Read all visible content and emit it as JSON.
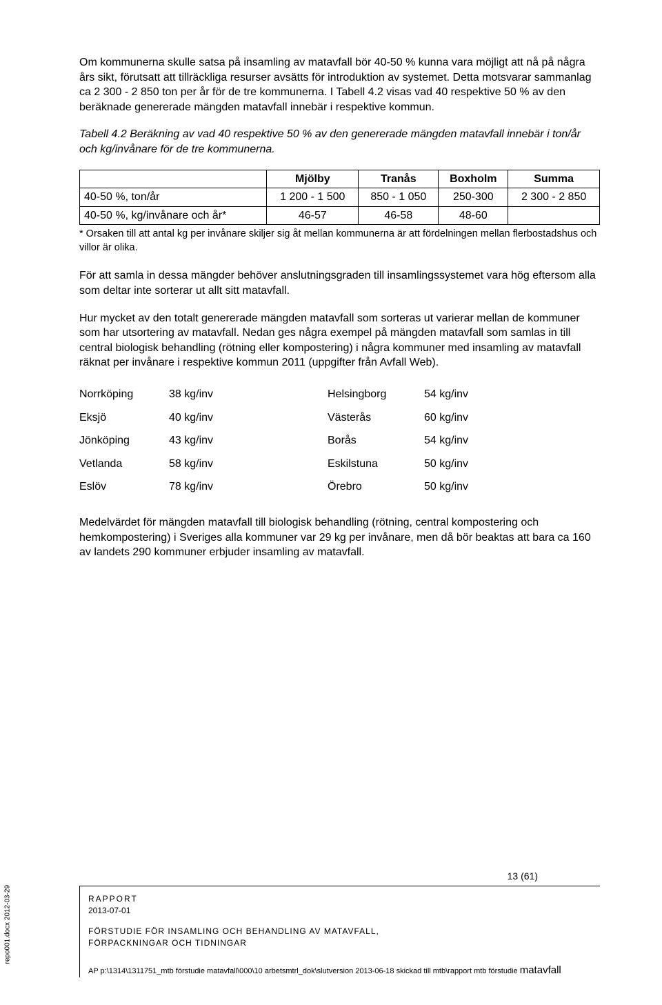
{
  "para1": "Om kommunerna skulle satsa på insamling av matavfall bör 40-50 % kunna vara möjligt att nå på några års sikt, förutsatt att tillräckliga resurser avsätts för introduktion av systemet. Detta motsvarar sammanlag ca 2 300 - 2 850 ton per år för de tre kommunerna. I Tabell 4.2 visas vad 40 respektive 50 % av den beräknade genererade mängden matavfall innebär i respektive kommun.",
  "tableCaption": "Tabell 4.2 Beräkning av vad 40 respektive 50 % av den genererade mängden matavfall innebär i ton/år och kg/invånare för de tre kommunerna.",
  "table": {
    "headers": [
      "",
      "Mjölby",
      "Tranås",
      "Boxholm",
      "Summa"
    ],
    "rows": [
      [
        "40-50 %, ton/år",
        "1 200 - 1 500",
        "850 - 1 050",
        "250-300",
        "2 300 - 2 850"
      ],
      [
        "40-50 %, kg/invånare och år*",
        "46-57",
        "46-58",
        "48-60",
        ""
      ]
    ]
  },
  "tableNote": "* Orsaken till att antal kg per invånare skiljer sig åt mellan kommunerna är att fördelningen mellan flerbostadshus och villor är olika.",
  "para2": "För att samla in dessa mängder behöver anslutningsgraden till insamlingssystemet vara hög eftersom alla som deltar inte sorterar ut allt sitt matavfall.",
  "para3": "Hur mycket av den totalt genererade mängden matavfall som sorteras ut varierar mellan de kommuner som har utsortering av matavfall. Nedan ges några exempel på mängden matavfall som samlas in till central biologisk behandling (rötning eller kompostering) i några kommuner med insamling av matavfall räknat per invånare i respektive kommun 2011 (uppgifter från Avfall Web).",
  "cityList": [
    {
      "left": "Norrköping",
      "lval": "38 kg/inv",
      "right": "Helsingborg",
      "rval": "54 kg/inv"
    },
    {
      "left": "Eksjö",
      "lval": "40 kg/inv",
      "right": "Västerås",
      "rval": "60 kg/inv"
    },
    {
      "left": "Jönköping",
      "lval": "43 kg/inv",
      "right": "Borås",
      "rval": "54 kg/inv"
    },
    {
      "left": "Vetlanda",
      "lval": "58 kg/inv",
      "right": "Eskilstuna",
      "rval": "50 kg/inv"
    },
    {
      "left": "Eslöv",
      "lval": "78 kg/inv",
      "right": "Örebro",
      "rval": "50 kg/inv"
    }
  ],
  "para4": "Medelvärdet för mängden matavfall till biologisk behandling (rötning, central kompostering och hemkompostering) i Sveriges alla kommuner var 29 kg per invånare, men då bör beaktas att bara ca 160 av landets 290 kommuner erbjuder insamling av matavfall.",
  "pageNum": "13 (61)",
  "footer": {
    "rapport": "RAPPORT",
    "date": "2013-07-01",
    "title1": "FÖRSTUDIE FÖR INSAMLING OCH BEHANDLING AV MATAVFALL,",
    "title2": "FÖRPACKNINGAR OCH TIDNINGAR",
    "path1": "AP p:\\1314\\1311751_mtb förstudie matavfall\\000\\10 arbetsmtrl_dok\\slutversion 2013-06-18 skickad till mtb\\rapport mtb förstudie ",
    "path2": "matavfall"
  },
  "sideText": "repo001.docx 2012-03-29"
}
